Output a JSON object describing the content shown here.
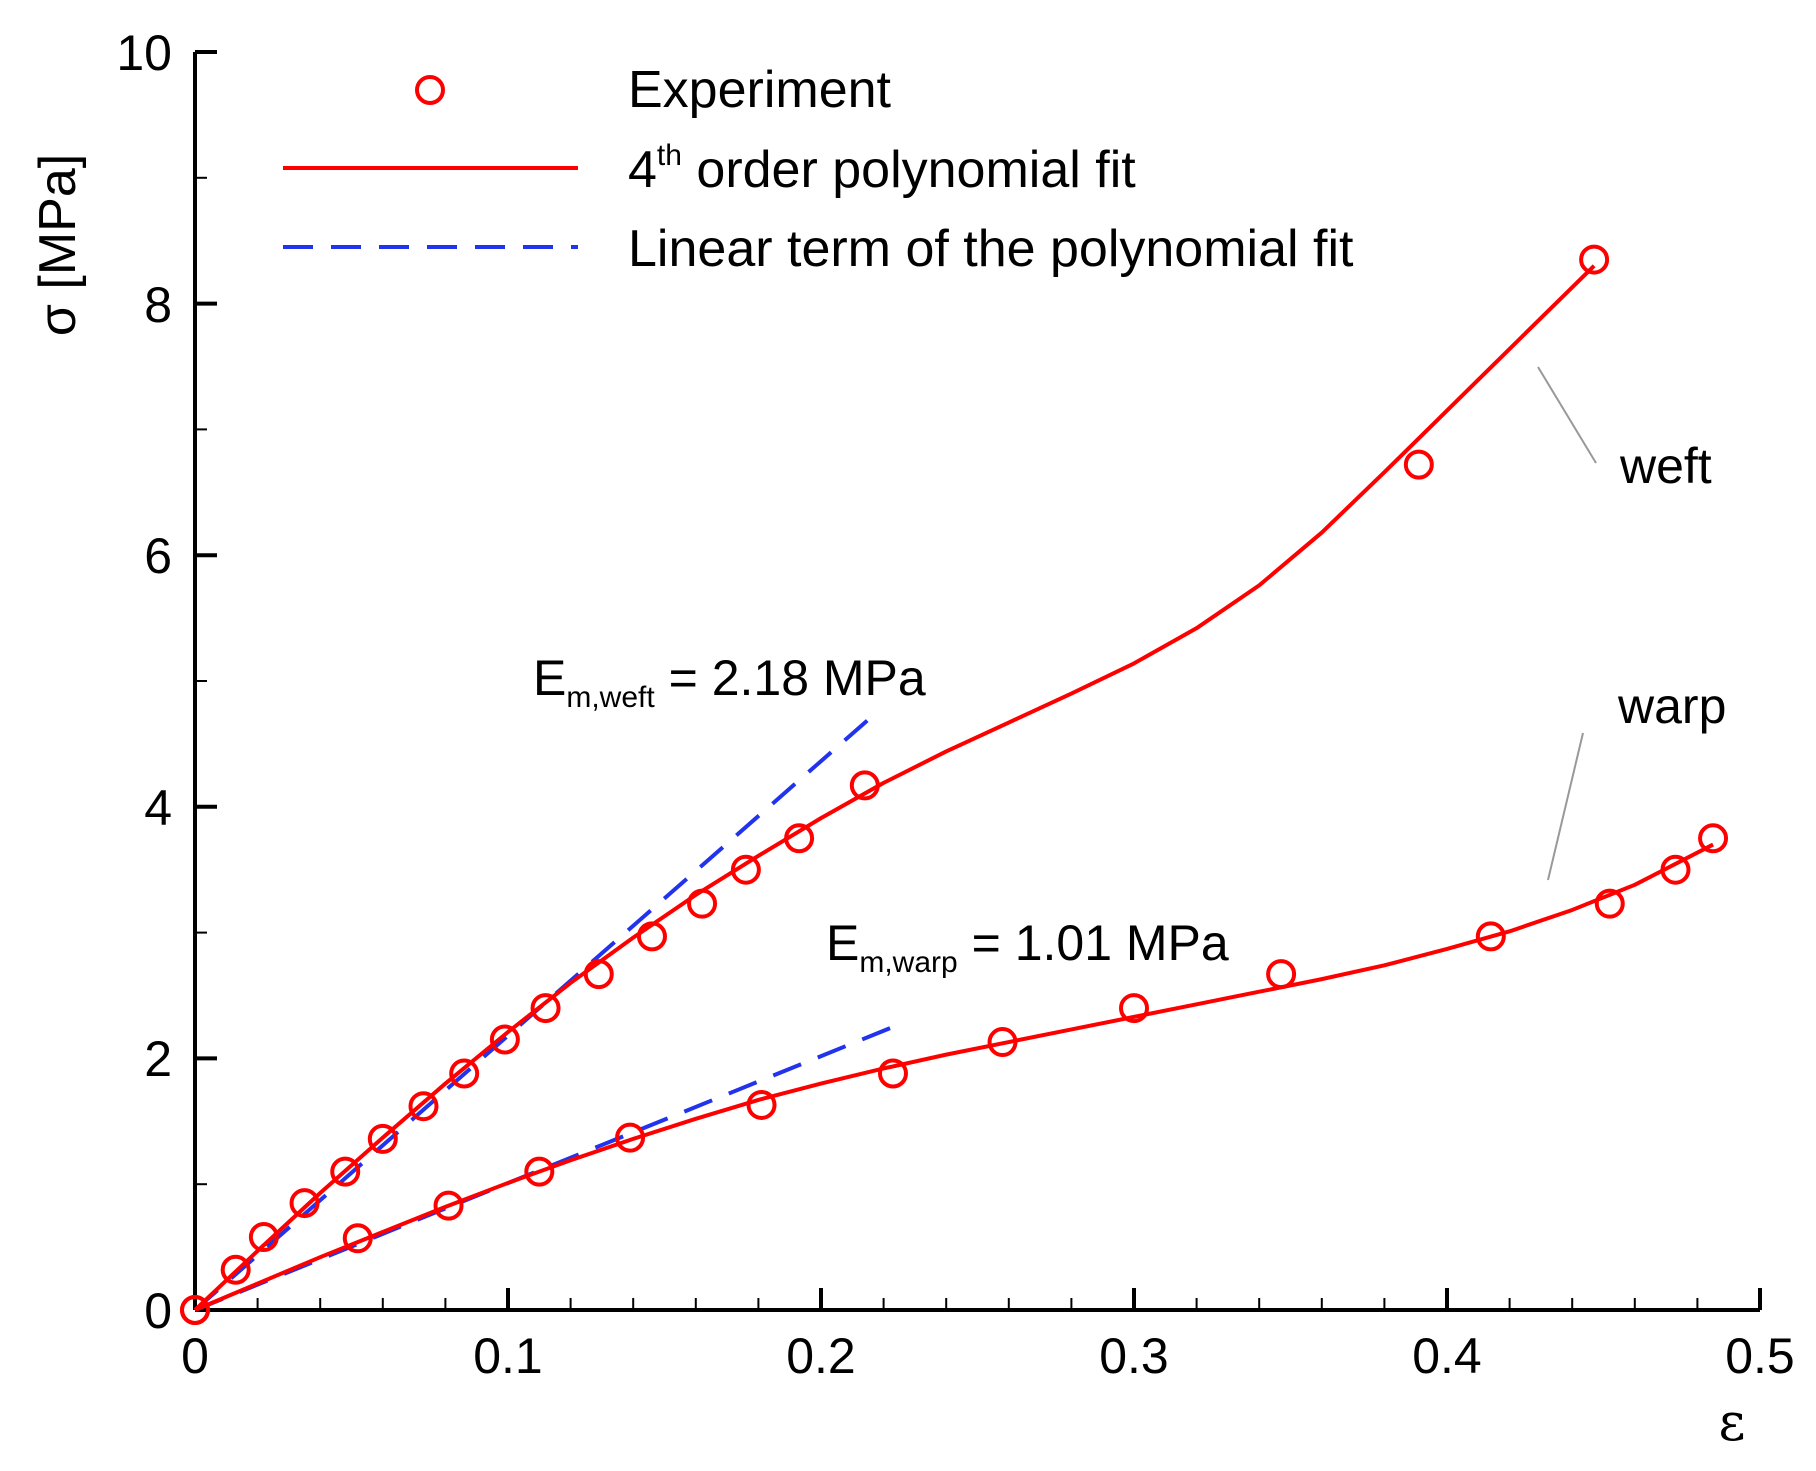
{
  "chart_data": {
    "type": "scatter",
    "title": "",
    "xlabel": "ε",
    "ylabel": "σ [MPa]",
    "xlim": [
      0,
      0.5
    ],
    "ylim": [
      0,
      10
    ],
    "x_ticks": [
      "0",
      "0.1",
      "0.2",
      "0.3",
      "0.4",
      "0.5"
    ],
    "y_ticks": [
      "0",
      "2",
      "4",
      "6",
      "8",
      "10"
    ],
    "legend": {
      "position": "top-left",
      "entries": [
        {
          "key": "experiment",
          "label": "Experiment",
          "marker": "circle-open",
          "color": "#ff0000"
        },
        {
          "key": "fit",
          "label_prefix": "4",
          "label_superscript": "th",
          "label_suffix": " order polynomial fit",
          "style": "solid",
          "color": "#ff0000"
        },
        {
          "key": "linear",
          "label": "Linear term of the polynomial fit",
          "style": "dashed",
          "color": "#2233ee"
        }
      ]
    },
    "series": [
      {
        "name": "weft",
        "label": "weft",
        "color": "#ff0000",
        "experiment": {
          "x": [
            0.0,
            0.013,
            0.022,
            0.035,
            0.048,
            0.06,
            0.073,
            0.086,
            0.099,
            0.112,
            0.129,
            0.146,
            0.162,
            0.176,
            0.193,
            0.214,
            0.391,
            0.447
          ],
          "y": [
            0.0,
            0.32,
            0.58,
            0.85,
            1.1,
            1.36,
            1.62,
            1.88,
            2.15,
            2.4,
            2.67,
            2.97,
            3.23,
            3.5,
            3.75,
            4.17,
            6.72,
            8.35
          ]
        },
        "fit_x": [
          0.0,
          0.02,
          0.04,
          0.06,
          0.08,
          0.1,
          0.12,
          0.14,
          0.16,
          0.18,
          0.2,
          0.22,
          0.24,
          0.26,
          0.28,
          0.3,
          0.32,
          0.34,
          0.36,
          0.38,
          0.4,
          0.42,
          0.447
        ],
        "fit_y": [
          0.0,
          0.47,
          0.93,
          1.37,
          1.8,
          2.21,
          2.6,
          2.96,
          3.3,
          3.61,
          3.91,
          4.19,
          4.44,
          4.67,
          4.9,
          5.14,
          5.42,
          5.76,
          6.18,
          6.66,
          7.15,
          7.64,
          8.3
        ],
        "linear_x": [
          0.0,
          0.215
        ],
        "linear_y": [
          0.0,
          4.69
        ],
        "modulus_label": {
          "main": "E",
          "sub": "m,weft",
          "value": " = 2.18 MPa"
        }
      },
      {
        "name": "warp",
        "label": "warp",
        "color": "#ff0000",
        "experiment": {
          "x": [
            0.0,
            0.052,
            0.081,
            0.11,
            0.139,
            0.181,
            0.223,
            0.258,
            0.3,
            0.347,
            0.414,
            0.452,
            0.473,
            0.485
          ],
          "y": [
            0.0,
            0.57,
            0.83,
            1.1,
            1.37,
            1.63,
            1.88,
            2.13,
            2.4,
            2.67,
            2.97,
            3.23,
            3.5,
            3.75
          ]
        },
        "fit_x": [
          0.0,
          0.02,
          0.04,
          0.06,
          0.08,
          0.1,
          0.12,
          0.14,
          0.16,
          0.18,
          0.2,
          0.22,
          0.24,
          0.26,
          0.28,
          0.3,
          0.32,
          0.34,
          0.36,
          0.38,
          0.4,
          0.42,
          0.44,
          0.46,
          0.485
        ],
        "fit_y": [
          0.0,
          0.21,
          0.42,
          0.62,
          0.82,
          1.01,
          1.19,
          1.36,
          1.52,
          1.67,
          1.8,
          1.92,
          2.03,
          2.13,
          2.23,
          2.33,
          2.43,
          2.53,
          2.63,
          2.74,
          2.87,
          3.01,
          3.18,
          3.38,
          3.7
        ],
        "linear_x": [
          0.0,
          0.224
        ],
        "linear_y": [
          0.0,
          2.26
        ],
        "modulus_label": {
          "main": "E",
          "sub": "m,warp",
          "value": " = 1.01 MPa"
        }
      }
    ]
  }
}
